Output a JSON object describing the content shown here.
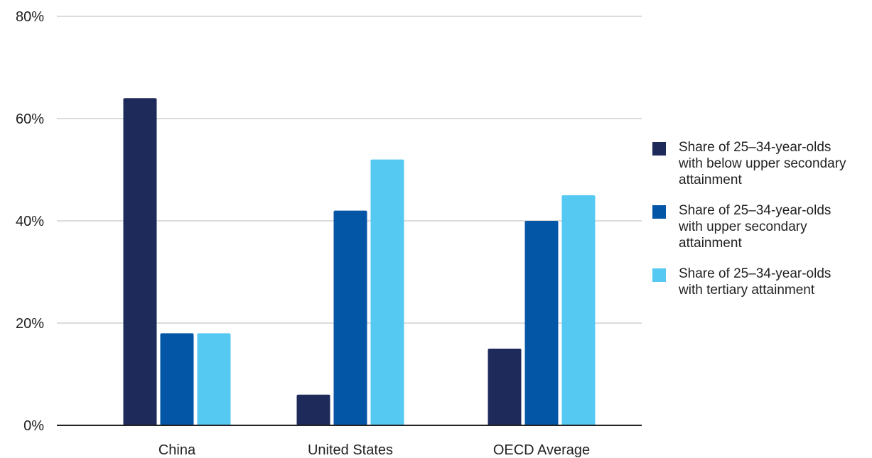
{
  "chart_data": {
    "type": "bar",
    "categories": [
      "China",
      "United States",
      "OECD Average"
    ],
    "series": [
      {
        "name": "Share of 25–34-year-olds with below upper secondary attainment",
        "color": "#1e2a5a",
        "values": [
          64,
          6,
          15
        ]
      },
      {
        "name": "Share of 25–34-year-olds with upper secondary attainment",
        "color": "#0356a5",
        "values": [
          18,
          42,
          40
        ]
      },
      {
        "name": "Share of 25–34-year-olds with tertiary attainment",
        "color": "#56c9f3",
        "values": [
          18,
          52,
          45
        ]
      }
    ],
    "ylim": [
      0,
      80
    ],
    "yticks": [
      0,
      20,
      40,
      60,
      80
    ],
    "ytick_labels": [
      "0%",
      "20%",
      "40%",
      "60%",
      "80%"
    ],
    "grid": true,
    "legend_position": "right",
    "title": "",
    "xlabel": "",
    "ylabel": ""
  }
}
